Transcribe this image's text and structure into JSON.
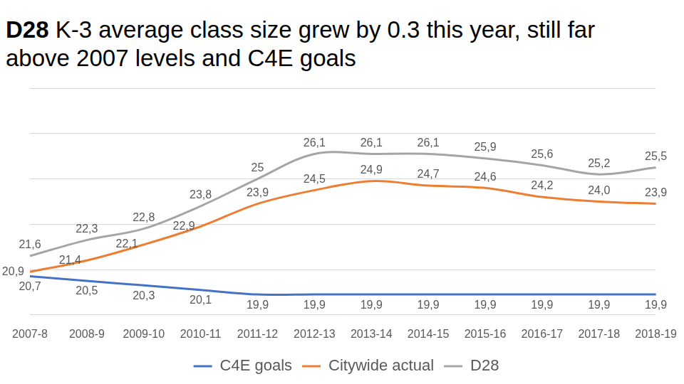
{
  "chart_data": {
    "type": "line",
    "title": "D28 K-3 average class size grew by 0.3 this year, still far above 2007 levels and C4E goals",
    "categories": [
      "2007-8",
      "2008-9",
      "2009-10",
      "2010-11",
      "2011-12",
      "2012-13",
      "2013-14",
      "2014-15",
      "2015-16",
      "2016-17",
      "2017-18",
      "2018-19"
    ],
    "series": [
      {
        "name": "C4E goals",
        "color": "#4472c4",
        "values": [
          20.7,
          20.5,
          20.3,
          20.1,
          19.9,
          19.9,
          19.9,
          19.9,
          19.9,
          19.9,
          19.9,
          19.9
        ],
        "value_labels": [
          "20,7",
          "20,5",
          "20,3",
          "20,1",
          "19,9",
          "19,9",
          "19,9",
          "19,9",
          "19,9",
          "19,9",
          "19,9",
          "19,9"
        ]
      },
      {
        "name": "Citywide actual",
        "color": "#ed7d31",
        "values": [
          20.9,
          21.4,
          22.1,
          22.9,
          23.9,
          24.5,
          24.9,
          24.7,
          24.6,
          24.2,
          24.0,
          23.9
        ],
        "value_labels": [
          "20,9",
          "21,4",
          "22,1",
          "22,9",
          "23,9",
          "24,5",
          "24,9",
          "24,7",
          "24,6",
          "24,2",
          "24,0",
          "23,9"
        ]
      },
      {
        "name": "D28",
        "color": "#a5a5a5",
        "values": [
          21.6,
          22.3,
          22.8,
          23.8,
          25,
          26.1,
          26.1,
          26.1,
          25.9,
          25.6,
          25.2,
          25.5
        ],
        "value_labels": [
          "21,6",
          "22,3",
          "22,8",
          "23,8",
          "25",
          "26,1",
          "26,1",
          "26,1",
          "25,9",
          "25,6",
          "25,2",
          "25,5"
        ]
      }
    ],
    "ylim": [
      19,
      29
    ],
    "yticks": [
      19,
      21,
      23,
      25,
      27,
      29
    ],
    "grid": true,
    "legend": "bottom",
    "data_labels": true,
    "tick_labels": "x"
  }
}
